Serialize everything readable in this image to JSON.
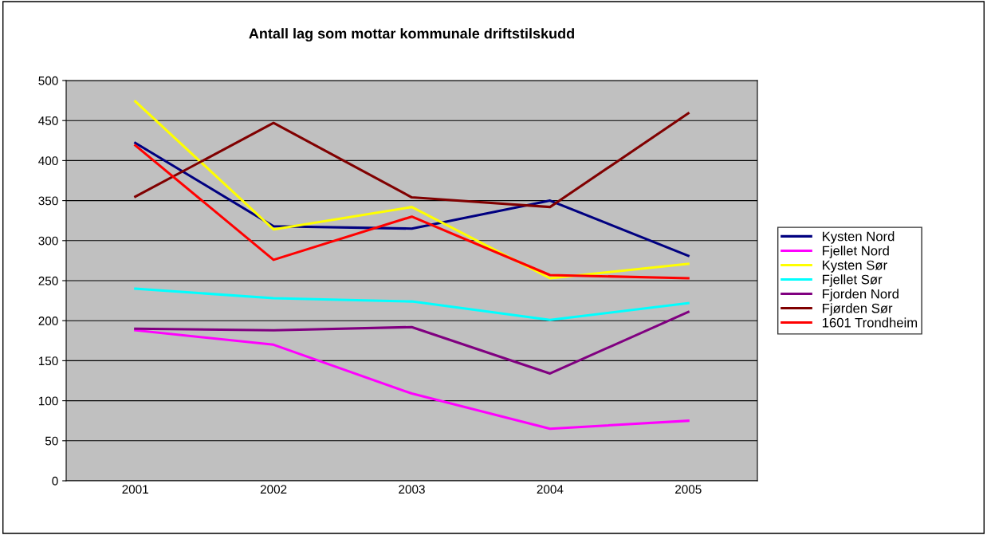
{
  "chart_data": {
    "type": "line",
    "title": "Antall lag som mottar kommunale driftstilskudd",
    "categories": [
      "2001",
      "2002",
      "2003",
      "2004",
      "2005"
    ],
    "series": [
      {
        "name": "Kysten Nord",
        "color": "#000080",
        "values": [
          422,
          318,
          315,
          350,
          281
        ]
      },
      {
        "name": "Fjellet Nord",
        "color": "#ff00ff",
        "values": [
          188,
          170,
          109,
          65,
          75
        ]
      },
      {
        "name": "Kysten Sør",
        "color": "#ffff00",
        "values": [
          474,
          314,
          342,
          253,
          271
        ]
      },
      {
        "name": "Fjellet Sør",
        "color": "#00ffff",
        "values": [
          240,
          228,
          224,
          201,
          222
        ]
      },
      {
        "name": "Fjorden Nord",
        "color": "#800080",
        "values": [
          190,
          188,
          192,
          134,
          211
        ]
      },
      {
        "name": "Fjørden Sør",
        "color": "#800000",
        "values": [
          355,
          447,
          354,
          342,
          459
        ]
      },
      {
        "name": "1601 Trondheim",
        "color": "#ff0000",
        "values": [
          419,
          276,
          330,
          257,
          253
        ]
      }
    ],
    "ylim": [
      0,
      500
    ],
    "yticks": [
      0,
      50,
      100,
      150,
      200,
      250,
      300,
      350,
      400,
      450,
      500
    ],
    "grid": "y",
    "legend": "right",
    "marker": "none",
    "line_style": "solid"
  }
}
